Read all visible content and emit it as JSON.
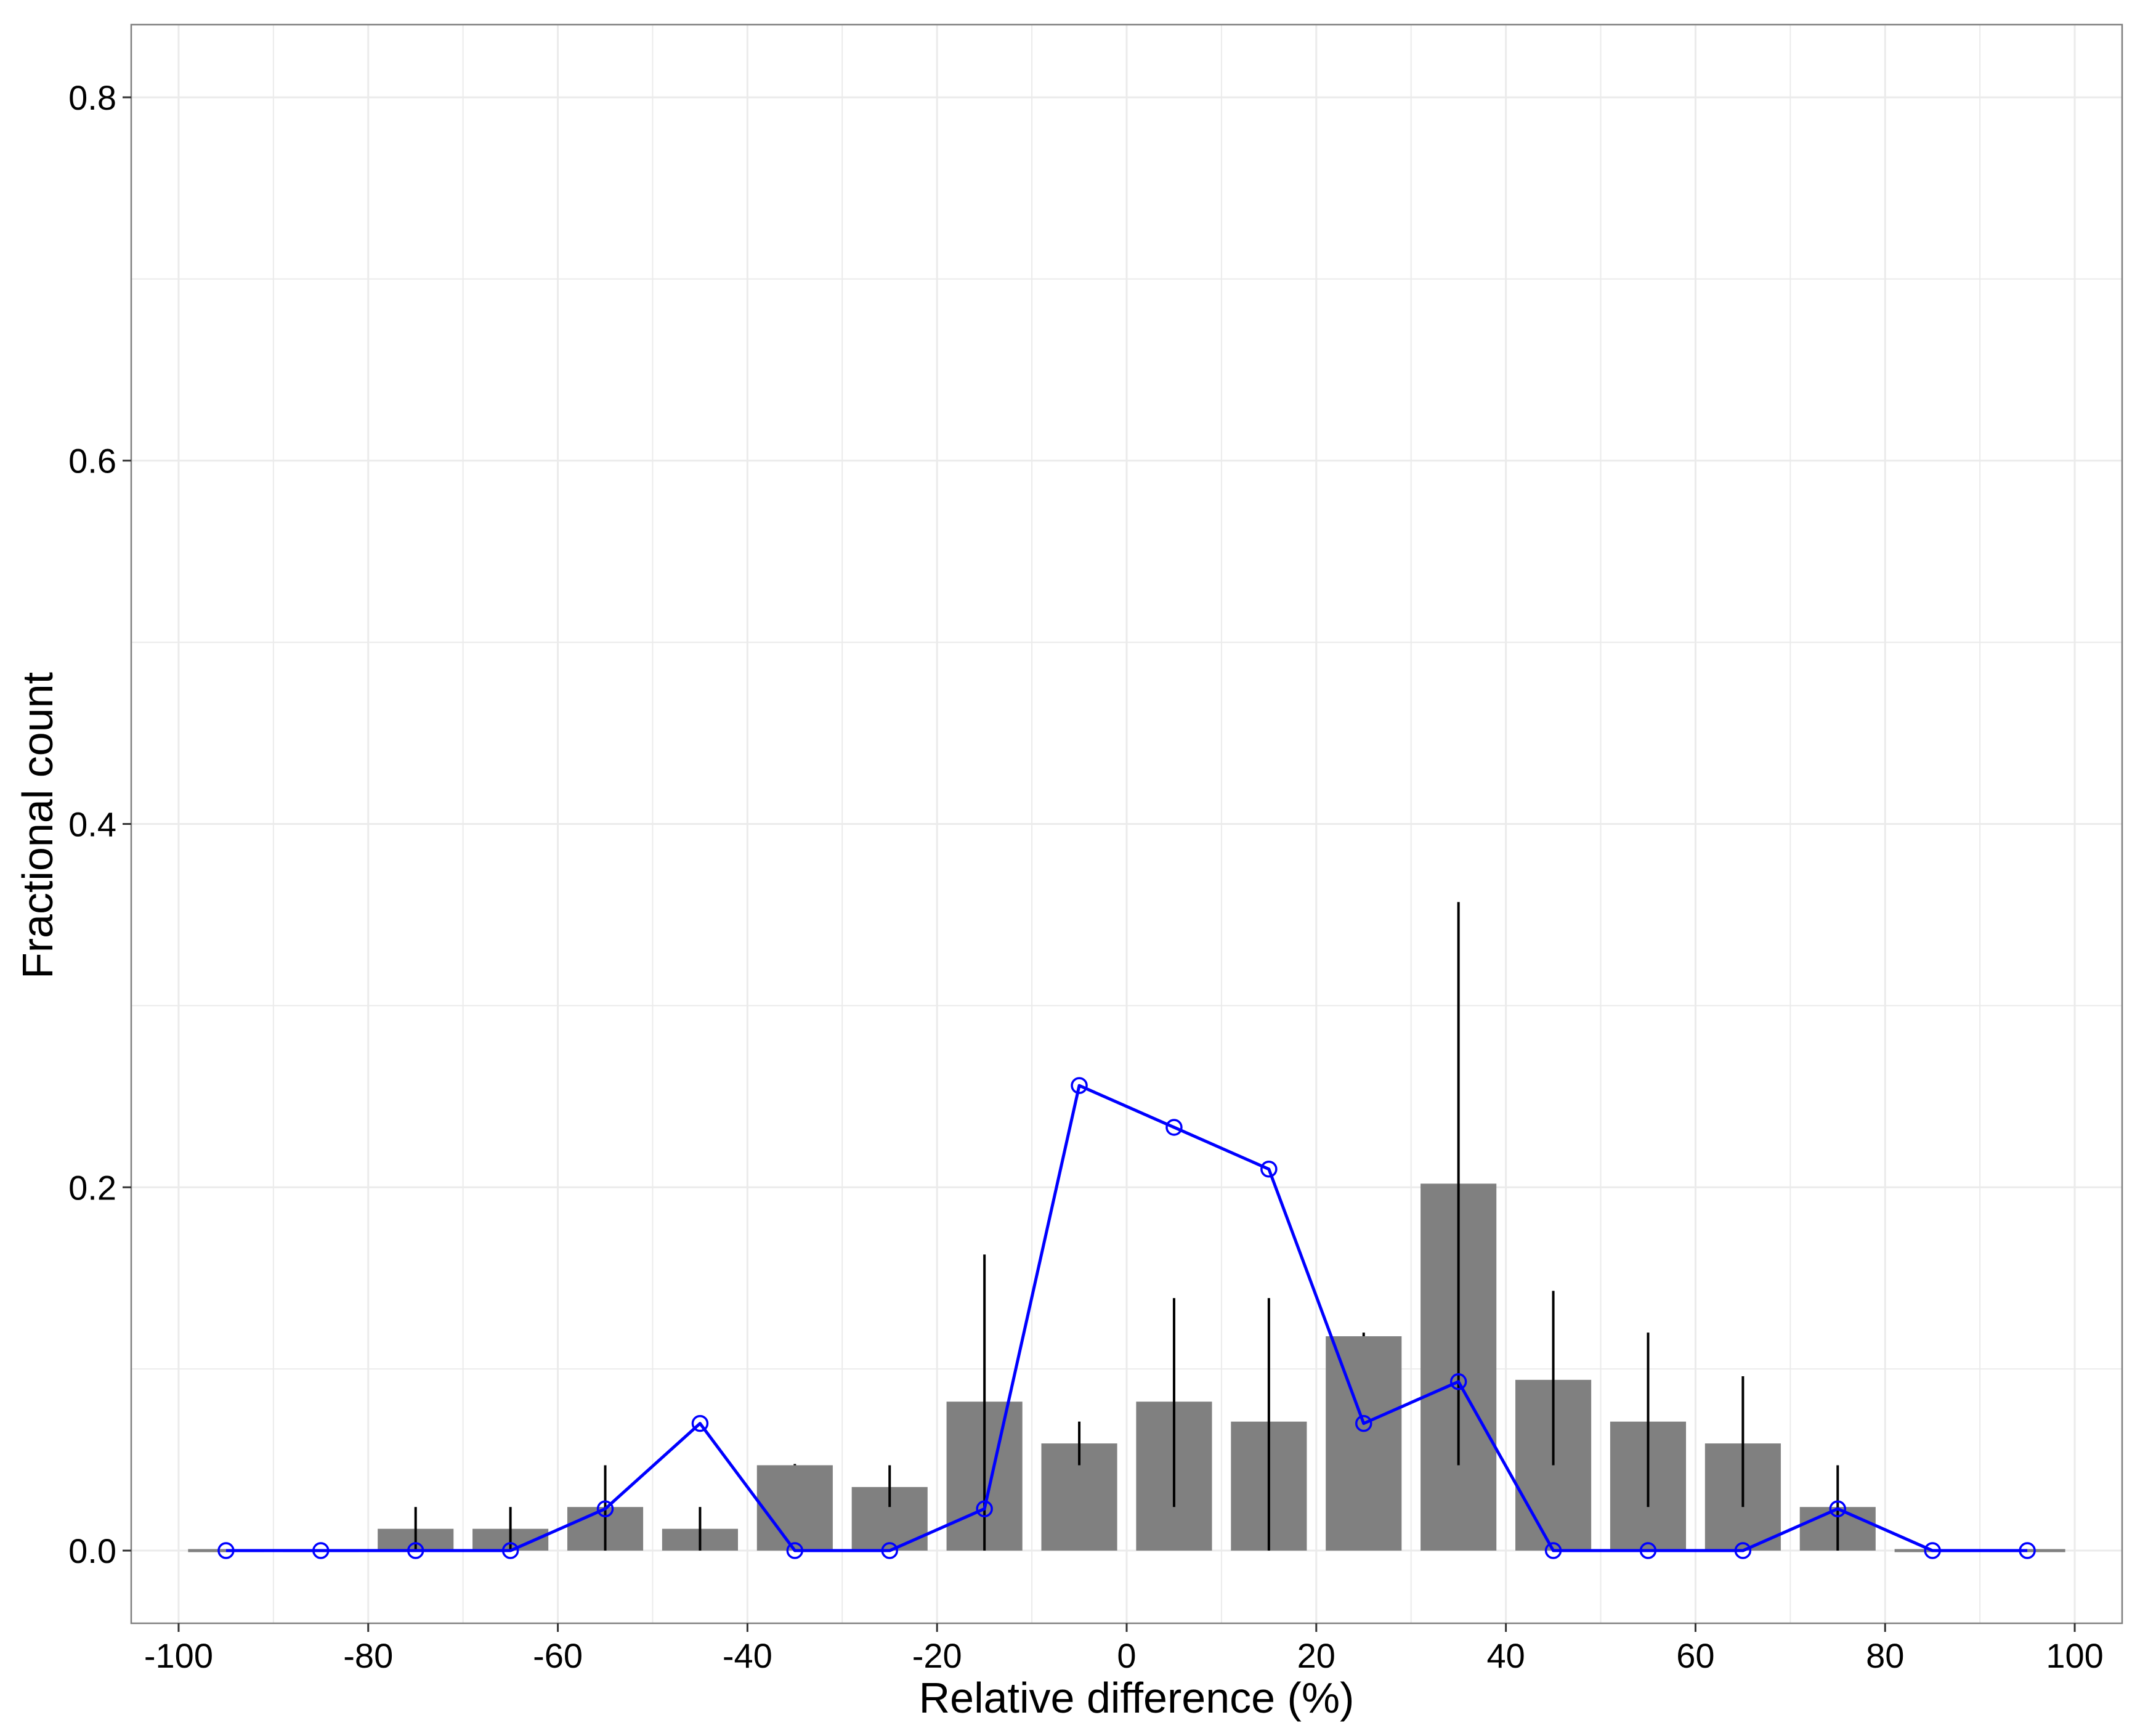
{
  "chart_data": {
    "type": "bar",
    "title": "",
    "xlabel": "Relative difference (%)",
    "ylabel": "Fractional count",
    "xlim": [
      -105,
      105
    ],
    "ylim": [
      -0.04,
      0.84
    ],
    "x_ticks": [
      -100,
      -80,
      -60,
      -40,
      -20,
      0,
      20,
      40,
      60,
      80,
      100
    ],
    "x_tick_labels": [
      "-100",
      "-80",
      "-60",
      "-40",
      "-20",
      "0",
      "20",
      "40",
      "60",
      "80",
      "100"
    ],
    "y_ticks": [
      0.0,
      0.2,
      0.4,
      0.6,
      0.8
    ],
    "y_tick_labels": [
      "0.0",
      "0.2",
      "0.4",
      "0.6",
      "0.8"
    ],
    "grid": true,
    "bin_width": 8,
    "x": [
      -95,
      -85,
      -75,
      -65,
      -55,
      -45,
      -35,
      -25,
      -15,
      -5,
      5,
      15,
      25,
      35,
      45,
      55,
      65,
      75,
      85,
      95
    ],
    "series": [
      {
        "kind": "bar",
        "values": [
          0.0,
          0.0,
          0.012,
          0.012,
          0.024,
          0.012,
          0.047,
          0.035,
          0.082,
          0.059,
          0.082,
          0.071,
          0.118,
          0.202,
          0.094,
          0.071,
          0.059,
          0.024,
          0.0,
          0.0
        ],
        "error_low": [
          null,
          null,
          0.0,
          0.0,
          0.0,
          0.0,
          0.047,
          0.024,
          0.0,
          0.047,
          0.024,
          0.0,
          0.118,
          0.047,
          0.047,
          0.024,
          0.024,
          0.0,
          null,
          null
        ],
        "error_high": [
          null,
          null,
          0.024,
          0.024,
          0.047,
          0.024,
          0.047,
          0.047,
          0.163,
          0.071,
          0.139,
          0.139,
          0.12,
          0.357,
          0.143,
          0.12,
          0.096,
          0.047,
          null,
          null
        ],
        "color": "#808080",
        "error_color": "#000000"
      },
      {
        "kind": "line",
        "values": [
          0.0,
          0.0,
          0.0,
          0.0,
          0.023,
          0.07,
          0.0,
          0.0,
          0.023,
          0.256,
          0.233,
          0.21,
          0.07,
          0.093,
          0.0,
          0.0,
          0.0,
          0.023,
          0.0,
          0.0
        ],
        "color": "#0000ff",
        "marker": "open-circle"
      }
    ],
    "colors": {
      "background": "#ffffff",
      "grid": "#ebebeb",
      "panel_border": "#7f7f7f",
      "axis_ticks": "#333333"
    }
  }
}
